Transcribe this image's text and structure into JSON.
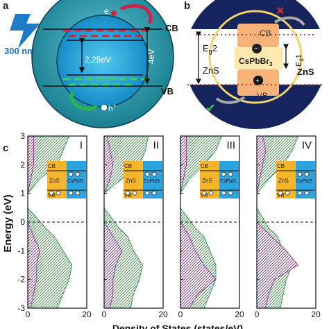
{
  "figure": {
    "panels": {
      "a": {
        "label": "a",
        "cb": "CB",
        "vb": "VB",
        "excitation": "300 nm",
        "electron": "e",
        "hole": "h",
        "hole_sup": "+",
        "core_gap": "2.25eV",
        "shell_gap": "4eV"
      },
      "b": {
        "label": "b",
        "cb": "CB",
        "vb": "VB",
        "core": "CsPbBr",
        "core_sub": "3",
        "eg2": "E",
        "eg2_sub": "g",
        "eg2_suffix": "2",
        "eg1": "E",
        "eg1_sub": "g",
        "eg1_suffix": "1",
        "shell_left": "ZnS",
        "shell_right": "ZnS",
        "cross": "×",
        "check": "✔"
      },
      "c": {
        "label": "c",
        "ylabel": "Energy (eV)",
        "xlabel": "Density of States (states/eV)"
      }
    },
    "colors": {
      "core_blue": "#1ea0d8",
      "sphere_teal": "#1e8fa0",
      "shell_navy": "#16245e",
      "zns_yellow": "#f7b52c",
      "cspbx_blue": "#2aa5e0",
      "green_dos": "#1a8a3a",
      "purple_dos": "#8a2a8a"
    }
  },
  "chart_data": [
    {
      "type": "area",
      "panel_label": "I",
      "x_label": "Density of States (states/eV)",
      "y_label": "Energy (eV)",
      "x_range": [
        0,
        20
      ],
      "y_range": [
        -3,
        3
      ],
      "x_ticks": [
        0,
        20
      ],
      "y_ticks": [
        3,
        2,
        1,
        0,
        -1,
        -2,
        -3
      ],
      "fermi_level": 0,
      "inset": {
        "shell": "ZnS",
        "core": "CsPbI3",
        "cb": "CB",
        "vb": "VB"
      },
      "series": [
        {
          "energy": [
            -3,
            -2.5,
            -2,
            -1.5,
            -1,
            -0.5,
            -0.1,
            0.5,
            1,
            1.5,
            2,
            2.5,
            3
          ],
          "dos": [
            2,
            3,
            4,
            5,
            4,
            3,
            2,
            0,
            0,
            1,
            3,
            4,
            5
          ]
        },
        {
          "energy": [
            -3,
            -2.5,
            -2,
            -1.5,
            -1,
            -0.5,
            -0.2,
            0.5,
            1,
            1.5,
            2,
            2.5,
            3
          ],
          "dos": [
            10,
            12,
            14,
            15,
            12,
            9,
            6,
            0,
            0,
            4,
            10,
            12,
            14
          ]
        },
        {
          "energy": [
            -3,
            -2.5,
            -2,
            -1.5,
            -1,
            -0.5,
            0,
            0.5,
            1,
            1.5,
            2,
            2.5,
            3
          ],
          "dos": [
            1,
            2,
            3,
            3,
            4,
            2,
            0,
            0,
            0,
            1,
            2,
            2,
            2
          ]
        }
      ]
    },
    {
      "type": "area",
      "panel_label": "II",
      "x_label": "Density of States (states/eV)",
      "y_label": "Energy (eV)",
      "x_range": [
        0,
        20
      ],
      "y_range": [
        -3,
        3
      ],
      "x_ticks": [
        0,
        20
      ],
      "y_ticks": [
        3,
        2,
        1,
        0,
        -1,
        -2,
        -3
      ],
      "fermi_level": 0,
      "inset": {
        "shell": "ZnS",
        "core": "CsPbI3",
        "cb": "CB",
        "vb": "VB"
      },
      "series": [
        {
          "energy": [
            -3,
            -2.5,
            -2,
            -1.5,
            -1,
            -0.5,
            -0.1,
            0.5,
            1,
            1.5,
            2,
            2.5,
            3
          ],
          "dos": [
            2,
            3,
            3,
            4,
            3,
            2,
            1,
            0,
            0,
            2,
            3,
            5,
            6
          ]
        },
        {
          "energy": [
            -3,
            -2.5,
            -2,
            -1.5,
            -1,
            -0.5,
            -0.2,
            0.5,
            1,
            1.5,
            2,
            2.5,
            3
          ],
          "dos": [
            9,
            10,
            12,
            13,
            10,
            8,
            5,
            0,
            0,
            6,
            12,
            14,
            15
          ]
        },
        {
          "energy": [
            -3,
            -2.5,
            -2,
            -1.5,
            -1,
            -0.5,
            0,
            0.5,
            1,
            1.5,
            2,
            2.5,
            3
          ],
          "dos": [
            2,
            3,
            3,
            4,
            6,
            3,
            0,
            0,
            0,
            2,
            3,
            2,
            1
          ]
        }
      ]
    },
    {
      "type": "area",
      "panel_label": "III",
      "x_label": "Density of States (states/eV)",
      "y_label": "Energy (eV)",
      "x_range": [
        0,
        20
      ],
      "y_range": [
        -3,
        3
      ],
      "x_ticks": [
        0,
        20
      ],
      "y_ticks": [
        3,
        2,
        1,
        0,
        -1,
        -2,
        -3
      ],
      "fermi_level": 0,
      "inset": {
        "shell": "ZnS",
        "core": "CsPbI3",
        "cb": "CB",
        "vb": "VB"
      },
      "series": [
        {
          "energy": [
            -3,
            -2.5,
            -2,
            -1.5,
            -1,
            -0.5,
            -0.1,
            0.5,
            1,
            1.5,
            2,
            2.5,
            3
          ],
          "dos": [
            2,
            3,
            3,
            4,
            3,
            2,
            1,
            0,
            0,
            1,
            2,
            4,
            6
          ]
        },
        {
          "energy": [
            -3,
            -2.5,
            -2,
            -1.5,
            -1,
            -0.5,
            -0.2,
            0.5,
            1,
            1.5,
            2,
            2.5,
            3
          ],
          "dos": [
            8,
            10,
            12,
            12,
            10,
            8,
            5,
            0,
            0,
            3,
            8,
            12,
            14
          ]
        },
        {
          "energy": [
            -3,
            -2.5,
            -2,
            -1.5,
            -1,
            -0.5,
            0,
            0.5,
            1,
            1.5,
            2,
            2.5,
            3
          ],
          "dos": [
            3,
            6,
            12,
            8,
            5,
            3,
            0,
            0,
            0,
            1,
            2,
            2,
            2
          ]
        }
      ]
    },
    {
      "type": "area",
      "panel_label": "IV",
      "x_label": "Density of States (states/eV)",
      "y_label": "Energy (eV)",
      "x_range": [
        0,
        20
      ],
      "y_range": [
        -3,
        3
      ],
      "x_ticks": [
        0,
        20
      ],
      "y_ticks": [
        3,
        2,
        1,
        0,
        -1,
        -2,
        -3
      ],
      "fermi_level": 0,
      "inset": {
        "shell": "ZnS",
        "core": "CsPbI3",
        "cb": "CB",
        "vb": "VB"
      },
      "series": [
        {
          "energy": [
            -3,
            -2.5,
            -2,
            -1.5,
            -1,
            -0.5,
            -0.1,
            0.5,
            1,
            1.5,
            2,
            2.5,
            3
          ],
          "dos": [
            2,
            2,
            3,
            3,
            2,
            2,
            1,
            0,
            0,
            1,
            3,
            4,
            6
          ]
        },
        {
          "energy": [
            -3,
            -2.5,
            -2,
            -1.5,
            -1,
            -0.5,
            -0.2,
            0.5,
            1,
            1.5,
            2,
            2.5,
            3
          ],
          "dos": [
            8,
            9,
            10,
            12,
            9,
            7,
            4,
            0,
            0,
            4,
            9,
            12,
            14
          ]
        },
        {
          "energy": [
            -3,
            -2.5,
            -2,
            -1.5,
            -1,
            -0.5,
            0,
            0.5,
            1,
            1.5,
            2,
            2.5,
            3
          ],
          "dos": [
            3,
            4,
            6,
            14,
            10,
            5,
            0,
            0,
            0,
            1,
            2,
            3,
            2
          ]
        }
      ]
    }
  ]
}
